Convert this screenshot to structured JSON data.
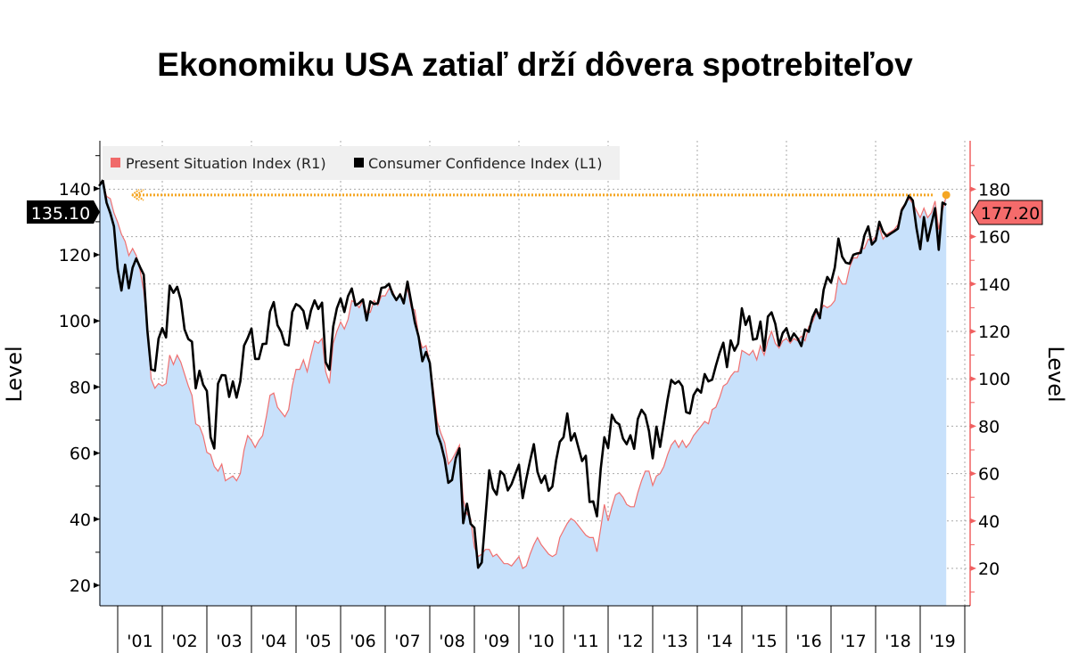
{
  "chart_data": {
    "type": "area+line",
    "title": "Ekonomiku USA zatiaľ drží dôvera spotrebiteľov",
    "x_start": "2000-08",
    "frequency": "monthly",
    "x_tick_labels": [
      "'01",
      "'02",
      "'03",
      "'04",
      "'05",
      "'06",
      "'07",
      "'08",
      "'09",
      "'10",
      "'11",
      "'12",
      "'13",
      "'14",
      "'15",
      "'16",
      "'17",
      "'18",
      "'19"
    ],
    "left_axis": {
      "label": "Level",
      "range": [
        15,
        155
      ],
      "ticks": [
        20,
        40,
        60,
        80,
        100,
        120,
        140
      ]
    },
    "right_axis": {
      "label": "Level",
      "range": [
        5,
        200
      ],
      "ticks": [
        20,
        40,
        60,
        80,
        100,
        120,
        140,
        160,
        180
      ],
      "color": "#f06060"
    },
    "grid": true,
    "legend_position": "top-left",
    "series": [
      {
        "name": "Present Situation Index (R1)",
        "axis": "right",
        "style": "area",
        "line_color": "#f07070",
        "fill_color": "#c8e1fb",
        "last_value_label": "177.20",
        "values": [
          182,
          183,
          177,
          176,
          170,
          166,
          161,
          158,
          152,
          155,
          152,
          146,
          137,
          121,
          100,
          96,
          98,
          97,
          98,
          110,
          106,
          110,
          107,
          102,
          97,
          93,
          81,
          80,
          76,
          69,
          68,
          63,
          61,
          64,
          57,
          58,
          59,
          57,
          60,
          70,
          76,
          74,
          71,
          74,
          76,
          84,
          93,
          94,
          88,
          86,
          84,
          87,
          97,
          104,
          104,
          108,
          103,
          110,
          116,
          115,
          117,
          103,
          98,
          115,
          120,
          124,
          121,
          125,
          133,
          132,
          130,
          133,
          128,
          128,
          133,
          131,
          135,
          135,
          138,
          137,
          133,
          136,
          133,
          138,
          130,
          129,
          118,
          113,
          114,
          107,
          95,
          82,
          77,
          73,
          64,
          66,
          69,
          72,
          49,
          43,
          41,
          29,
          25,
          26,
          28,
          28,
          25,
          26,
          24,
          22,
          22,
          21,
          23,
          25,
          20,
          21,
          26,
          30,
          33,
          30,
          28,
          26,
          25,
          26,
          33,
          36,
          39,
          41,
          40,
          38,
          36,
          34,
          33,
          33,
          27,
          37,
          47,
          40,
          46,
          51,
          52,
          50,
          47,
          46,
          46,
          52,
          57,
          61,
          61,
          55,
          59,
          60,
          63,
          68,
          72,
          74,
          71,
          74,
          71,
          73,
          76,
          78,
          80,
          82,
          81,
          87,
          88,
          92,
          97,
          98,
          101,
          103,
          103,
          112,
          111,
          110,
          112,
          108,
          114,
          110,
          116,
          120,
          115,
          113,
          116,
          117,
          115,
          117,
          116,
          118,
          116,
          122,
          124,
          128,
          128,
          131,
          130,
          131,
          133,
          143,
          140,
          140,
          147,
          151,
          151,
          155,
          155,
          159,
          158,
          160,
          164,
          159,
          161,
          162,
          163,
          165,
          172,
          174,
          176,
          174,
          171,
          168,
          172,
          168,
          170,
          175,
          163,
          171,
          177.2
        ]
      },
      {
        "name": "Consumer Confidence Index (L1)",
        "axis": "left",
        "style": "line",
        "line_color": "#000000",
        "last_value_label": "135.10",
        "values": [
          140.8,
          142.5,
          135.8,
          132.6,
          128.6,
          115.7,
          109.2,
          117.0,
          109.9,
          116.1,
          118.9,
          116.3,
          114.0,
          97.0,
          85.3,
          84.9,
          94.6,
          97.8,
          95.0,
          110.7,
          108.5,
          110.3,
          106.3,
          97.4,
          94.5,
          93.7,
          79.6,
          84.9,
          80.7,
          78.8,
          64.8,
          61.4,
          81.0,
          83.6,
          83.5,
          77.0,
          81.7,
          76.8,
          81.7,
          92.5,
          94.8,
          97.7,
          88.5,
          88.5,
          93.0,
          93.1,
          102.8,
          105.7,
          98.7,
          96.7,
          92.9,
          92.6,
          102.7,
          105.1,
          104.4,
          103.0,
          97.7,
          103.1,
          106.2,
          103.6,
          105.5,
          87.5,
          85.2,
          98.3,
          103.8,
          106.8,
          102.7,
          107.5,
          109.8,
          104.7,
          105.4,
          106.5,
          100.2,
          105.9,
          105.1,
          105.3,
          110.0,
          110.2,
          111.2,
          108.2,
          106.3,
          108.0,
          105.3,
          111.9,
          105.6,
          99.5,
          95.2,
          87.8,
          90.6,
          87.3,
          76.4,
          65.9,
          62.8,
          58.1,
          51.0,
          51.9,
          58.5,
          61.4,
          38.8,
          44.7,
          38.6,
          37.4,
          25.3,
          26.9,
          40.8,
          54.8,
          49.3,
          47.4,
          54.5,
          53.4,
          48.7,
          50.6,
          53.6,
          56.5,
          46.4,
          52.3,
          57.7,
          62.7,
          54.3,
          51.0,
          53.2,
          48.6,
          49.9,
          57.8,
          63.4,
          64.8,
          72.0,
          63.8,
          66.0,
          61.7,
          57.6,
          59.2,
          45.2,
          45.4,
          40.9,
          55.2,
          64.8,
          61.5,
          71.6,
          69.5,
          68.7,
          64.4,
          62.7,
          65.4,
          61.3,
          70.3,
          73.1,
          71.5,
          66.7,
          58.4,
          68.0,
          61.9,
          69.0,
          76.2,
          82.1,
          81.0,
          81.8,
          80.2,
          72.4,
          72.0,
          77.5,
          79.4,
          78.3,
          83.9,
          81.7,
          82.2,
          86.4,
          90.3,
          93.4,
          86.0,
          94.1,
          91.0,
          93.1,
          103.8,
          98.8,
          101.4,
          94.3,
          94.6,
          99.8,
          91.0,
          101.3,
          102.6,
          99.1,
          92.6,
          96.3,
          97.8,
          94.0,
          96.2,
          94.7,
          92.4,
          97.4,
          96.7,
          101.1,
          103.5,
          100.8,
          109.4,
          113.3,
          111.6,
          116.1,
          124.9,
          119.4,
          117.6,
          117.3,
          120.0,
          120.4,
          120.6,
          125.9,
          128.6,
          123.1,
          124.3,
          130.0,
          127.0,
          125.6,
          126.4,
          127.1,
          127.9,
          133.4,
          135.3,
          137.9,
          136.4,
          128.1,
          121.7,
          131.4,
          124.2,
          129.2,
          134.1,
          121.5,
          135.8,
          135.1
        ]
      }
    ],
    "reference_line": {
      "axis": "right",
      "value": 177.2,
      "color": "#f5a623"
    }
  }
}
